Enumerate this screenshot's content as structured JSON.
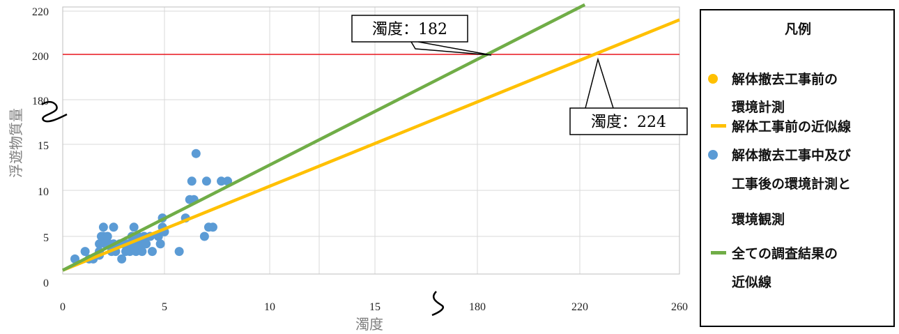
{
  "chart_data": {
    "type": "scatter",
    "xlabel": "濁度",
    "ylabel": "浮遊物質量",
    "x_ticks": [
      "0",
      "5",
      "10",
      "15",
      "180",
      "220",
      "260"
    ],
    "y_ticks": [
      "0",
      "5",
      "10",
      "15",
      "180",
      "200",
      "220"
    ],
    "axis_break": true,
    "threshold": {
      "y": 200,
      "color": "#e8141c"
    },
    "series": [
      {
        "name": "解体撤去工事中及び工事後の環境計測と環境観測",
        "kind": "scatter",
        "color": "#5b9bd5",
        "points": [
          [
            0.6,
            2
          ],
          [
            1.1,
            3
          ],
          [
            1.3,
            2
          ],
          [
            1.5,
            2
          ],
          [
            1.8,
            2.5
          ],
          [
            1.8,
            3
          ],
          [
            1.8,
            4
          ],
          [
            1.9,
            5
          ],
          [
            2.0,
            6
          ],
          [
            2.0,
            5
          ],
          [
            2.1,
            4
          ],
          [
            2.2,
            5
          ],
          [
            2.3,
            4
          ],
          [
            2.4,
            3
          ],
          [
            2.5,
            6
          ],
          [
            2.5,
            4
          ],
          [
            2.6,
            3
          ],
          [
            2.8,
            4
          ],
          [
            2.9,
            2
          ],
          [
            3.0,
            4
          ],
          [
            3.1,
            3
          ],
          [
            3.2,
            4
          ],
          [
            3.3,
            3
          ],
          [
            3.4,
            5
          ],
          [
            3.5,
            4
          ],
          [
            3.5,
            6
          ],
          [
            3.6,
            3
          ],
          [
            3.7,
            5
          ],
          [
            3.8,
            4
          ],
          [
            3.9,
            3
          ],
          [
            4.0,
            5
          ],
          [
            4.1,
            4
          ],
          [
            4.3,
            5
          ],
          [
            4.4,
            3
          ],
          [
            4.7,
            5
          ],
          [
            4.8,
            4
          ],
          [
            4.9,
            6
          ],
          [
            4.9,
            7
          ],
          [
            5.0,
            5.5
          ],
          [
            5.7,
            3
          ],
          [
            6.0,
            7
          ],
          [
            6.2,
            9
          ],
          [
            6.3,
            11
          ],
          [
            6.4,
            9
          ],
          [
            6.5,
            14
          ],
          [
            6.9,
            5
          ],
          [
            7.0,
            11
          ],
          [
            7.1,
            6
          ],
          [
            7.3,
            6
          ],
          [
            7.7,
            11
          ],
          [
            8.0,
            11
          ]
        ]
      },
      {
        "name": "解体工事前の近似線",
        "kind": "line",
        "color": "#ffc000",
        "x": [
          0,
          260
        ],
        "y": [
          0.5,
          216
        ]
      },
      {
        "name": "全ての調査結果の近似線",
        "kind": "line",
        "color": "#70ad47",
        "x": [
          0,
          222
        ],
        "y": [
          0.5,
          223
        ]
      },
      {
        "name": "解体撤去工事前の環境計測",
        "kind": "scatter",
        "color": "#ffc000",
        "points": []
      }
    ],
    "annotations": [
      {
        "text": "濁度：182",
        "x": 182,
        "y": 200
      },
      {
        "text": "濁度：224",
        "x": 224,
        "y": 200
      }
    ]
  },
  "legend": {
    "title": "凡例",
    "items": [
      {
        "lines": [
          "解体撤去工事前の",
          "環境計測"
        ],
        "marker": "dot",
        "color": "#ffc000"
      },
      {
        "lines": [
          "解体工事前の近似線"
        ],
        "marker": "line",
        "color": "#ffc000"
      },
      {
        "lines": [
          "解体撤去工事中及び",
          "工事後の環境計測と",
          "環境観測"
        ],
        "marker": "dot",
        "color": "#5b9bd5"
      },
      {
        "lines": [
          "全ての調査結果の",
          "近似線"
        ],
        "marker": "line",
        "color": "#70ad47"
      }
    ]
  },
  "colors": {
    "grid": "#d9d9d9",
    "threshold": "#e8141c",
    "scatter": "#5b9bd5",
    "before_line": "#ffc000",
    "all_line": "#70ad47"
  }
}
